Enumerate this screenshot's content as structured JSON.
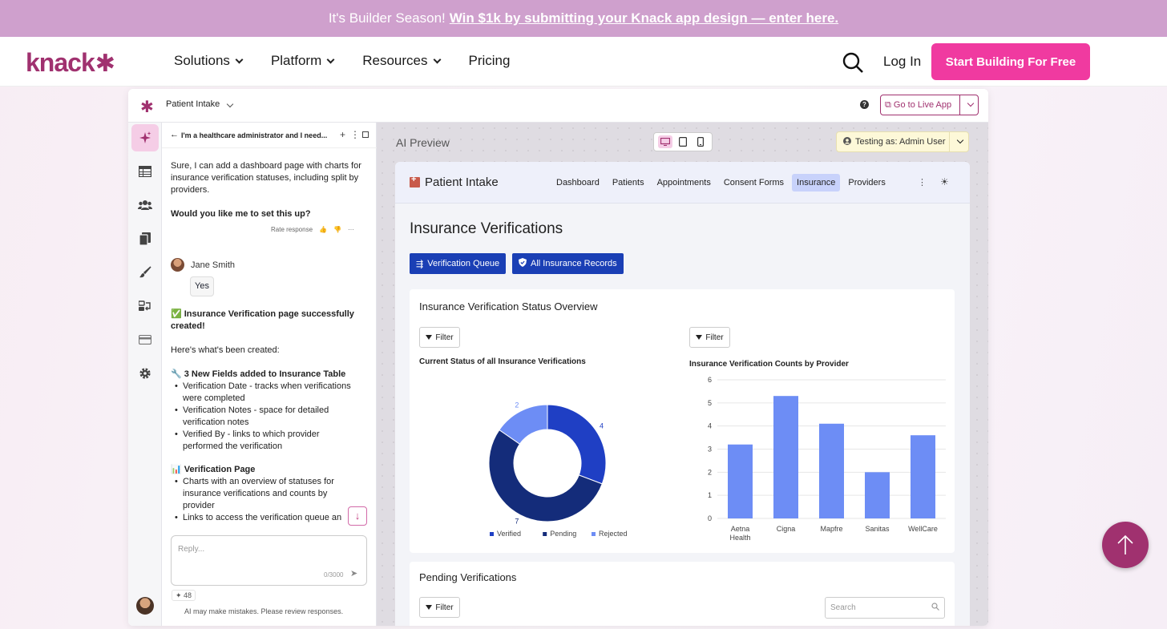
{
  "banner": {
    "text": "It's Builder Season!",
    "link": "Win $1k by submitting your Knack app design — enter here."
  },
  "nav": {
    "logo": "knack",
    "items": [
      "Solutions",
      "Platform",
      "Resources",
      "Pricing"
    ],
    "login": "Log In",
    "cta": "Start Building For Free"
  },
  "topbar": {
    "app_name": "Patient Intake",
    "help": "?",
    "live_button": "Go to Live App"
  },
  "chat": {
    "header_title": "I'm a healthcare administrator and I need...",
    "assistant_msg": "Sure, I can add a dashboard page with charts for insurance verification statuses, including split by providers.",
    "question": "Would you like me to set this up?",
    "rate_label": "Rate response",
    "user_name": "Jane Smith",
    "user_reply": "Yes",
    "success_line1": "✅ Insurance Verification page successfully",
    "success_line2": "created!",
    "intro": "Here's what's been created:",
    "fields_heading": "🔧 3 New Fields added to Insurance Table",
    "fields": [
      [
        "Verification Date - tracks when verifications",
        "were completed"
      ],
      [
        "Verification Notes - space for detailed",
        "verification notes"
      ],
      [
        "Verified By - links to which provider",
        "performed the verification"
      ]
    ],
    "page_heading": "📊 Verification Page",
    "page_items": [
      [
        "Charts with an overview of statuses for",
        "insurance verifications and counts by",
        "provider"
      ],
      [
        "Links to access the verification queue an"
      ]
    ],
    "reply_placeholder": "Reply...",
    "char_count": "0/3000",
    "credits": "48",
    "disclaimer": "AI may make mistakes. Please review responses."
  },
  "preview": {
    "label": "AI Preview",
    "testing_as": "Testing as: Admin User",
    "site_title": "Patient Intake",
    "tabs": [
      "Dashboard",
      "Patients",
      "Appointments",
      "Consent Forms",
      "Insurance",
      "Providers"
    ],
    "active_tab": "Insurance",
    "page_title": "Insurance Verifications",
    "buttons": [
      "Verification Queue",
      "All Insurance Records"
    ],
    "overview_card_title": "Insurance Verification Status Overview",
    "filter_label": "Filter",
    "pending_card_title": "Pending Verifications",
    "search_placeholder": "Search"
  },
  "chart_data": [
    {
      "type": "pie",
      "title": "Current Status of all Insurance Verifications",
      "categories": [
        "Verified",
        "Pending",
        "Rejected"
      ],
      "values": [
        4,
        7,
        2
      ],
      "colors": [
        "#1f3fc4",
        "#142c7a",
        "#6d8df5"
      ],
      "legend": "bottom",
      "donut": true
    },
    {
      "type": "bar",
      "title": "Insurance Verification Counts by Provider",
      "categories": [
        "Aetna Health",
        "Cigna",
        "Mapfre",
        "Sanitas",
        "WellCare"
      ],
      "values": [
        3.2,
        5.3,
        4.1,
        2.0,
        3.6
      ],
      "ylim": [
        0,
        6
      ],
      "yticks": [
        0,
        1,
        2,
        3,
        4,
        5,
        6
      ],
      "color": "#6d8df5",
      "grid": true
    }
  ],
  "colors": {
    "brand": "#a0316f",
    "cta": "#f03aa0",
    "primary_button": "#1a3fb5"
  }
}
